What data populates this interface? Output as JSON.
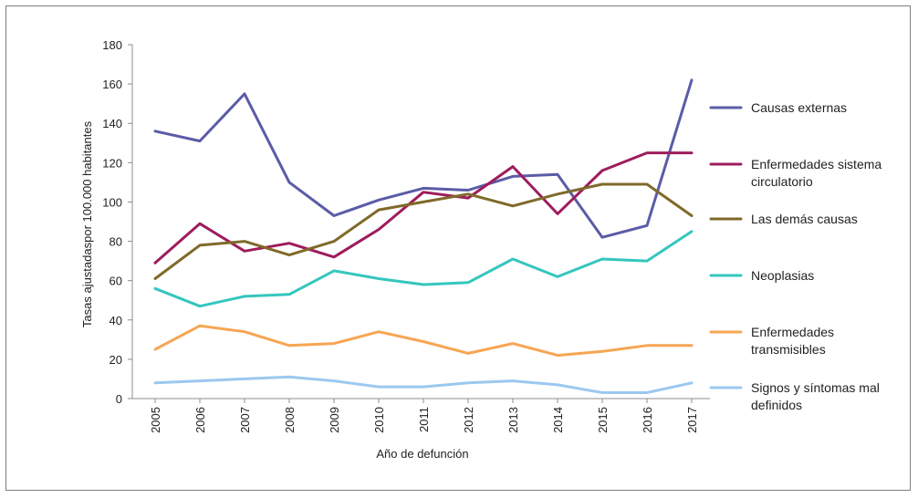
{
  "chart_data": {
    "type": "line",
    "title": "",
    "xlabel": "Año de defunción",
    "ylabel": "Tasas ajustadaspor 100.000 habitantes",
    "ylim": [
      0,
      180
    ],
    "yticks": [
      0,
      20,
      40,
      60,
      80,
      100,
      120,
      140,
      160,
      180
    ],
    "categories": [
      "2005",
      "2006",
      "2007",
      "2008",
      "2009",
      "2010",
      "2011",
      "2012",
      "2013",
      "2014",
      "2015",
      "2016",
      "2017"
    ],
    "grid": false,
    "legend_position": "right",
    "series": [
      {
        "name": "Causas externas",
        "legend_lines": [
          "Causas externas"
        ],
        "color": "#5b5ca6",
        "values": [
          136,
          131,
          155,
          110,
          93,
          101,
          107,
          106,
          113,
          114,
          82,
          88,
          162
        ]
      },
      {
        "name": "Enfermedades sistema circulatorio",
        "legend_lines": [
          "Enfermedades sistema",
          "circulatorio"
        ],
        "color": "#9e1c5c",
        "values": [
          69,
          89,
          75,
          79,
          72,
          86,
          105,
          102,
          118,
          94,
          116,
          125,
          125
        ]
      },
      {
        "name": "Las demás causas",
        "legend_lines": [
          "Las demás causas"
        ],
        "color": "#7f6a2a",
        "values": [
          61,
          78,
          80,
          73,
          80,
          96,
          100,
          104,
          98,
          104,
          109,
          109,
          93
        ]
      },
      {
        "name": "Neoplasias",
        "legend_lines": [
          "Neoplasias"
        ],
        "color": "#34c6bd",
        "values": [
          56,
          47,
          52,
          53,
          65,
          61,
          58,
          59,
          71,
          62,
          71,
          70,
          85
        ]
      },
      {
        "name": "Enfermedades transmisibles",
        "legend_lines": [
          "Enfermedades",
          "transmisibles"
        ],
        "color": "#f7a553",
        "values": [
          25,
          37,
          34,
          27,
          28,
          34,
          29,
          23,
          28,
          22,
          24,
          27,
          27
        ]
      },
      {
        "name": "Signos y síntomas mal definidos",
        "legend_lines": [
          "Signos y síntomas mal",
          "definidos"
        ],
        "color": "#9cc8f0",
        "values": [
          8,
          9,
          10,
          11,
          9,
          6,
          6,
          8,
          9,
          7,
          3,
          3,
          8
        ]
      }
    ]
  }
}
